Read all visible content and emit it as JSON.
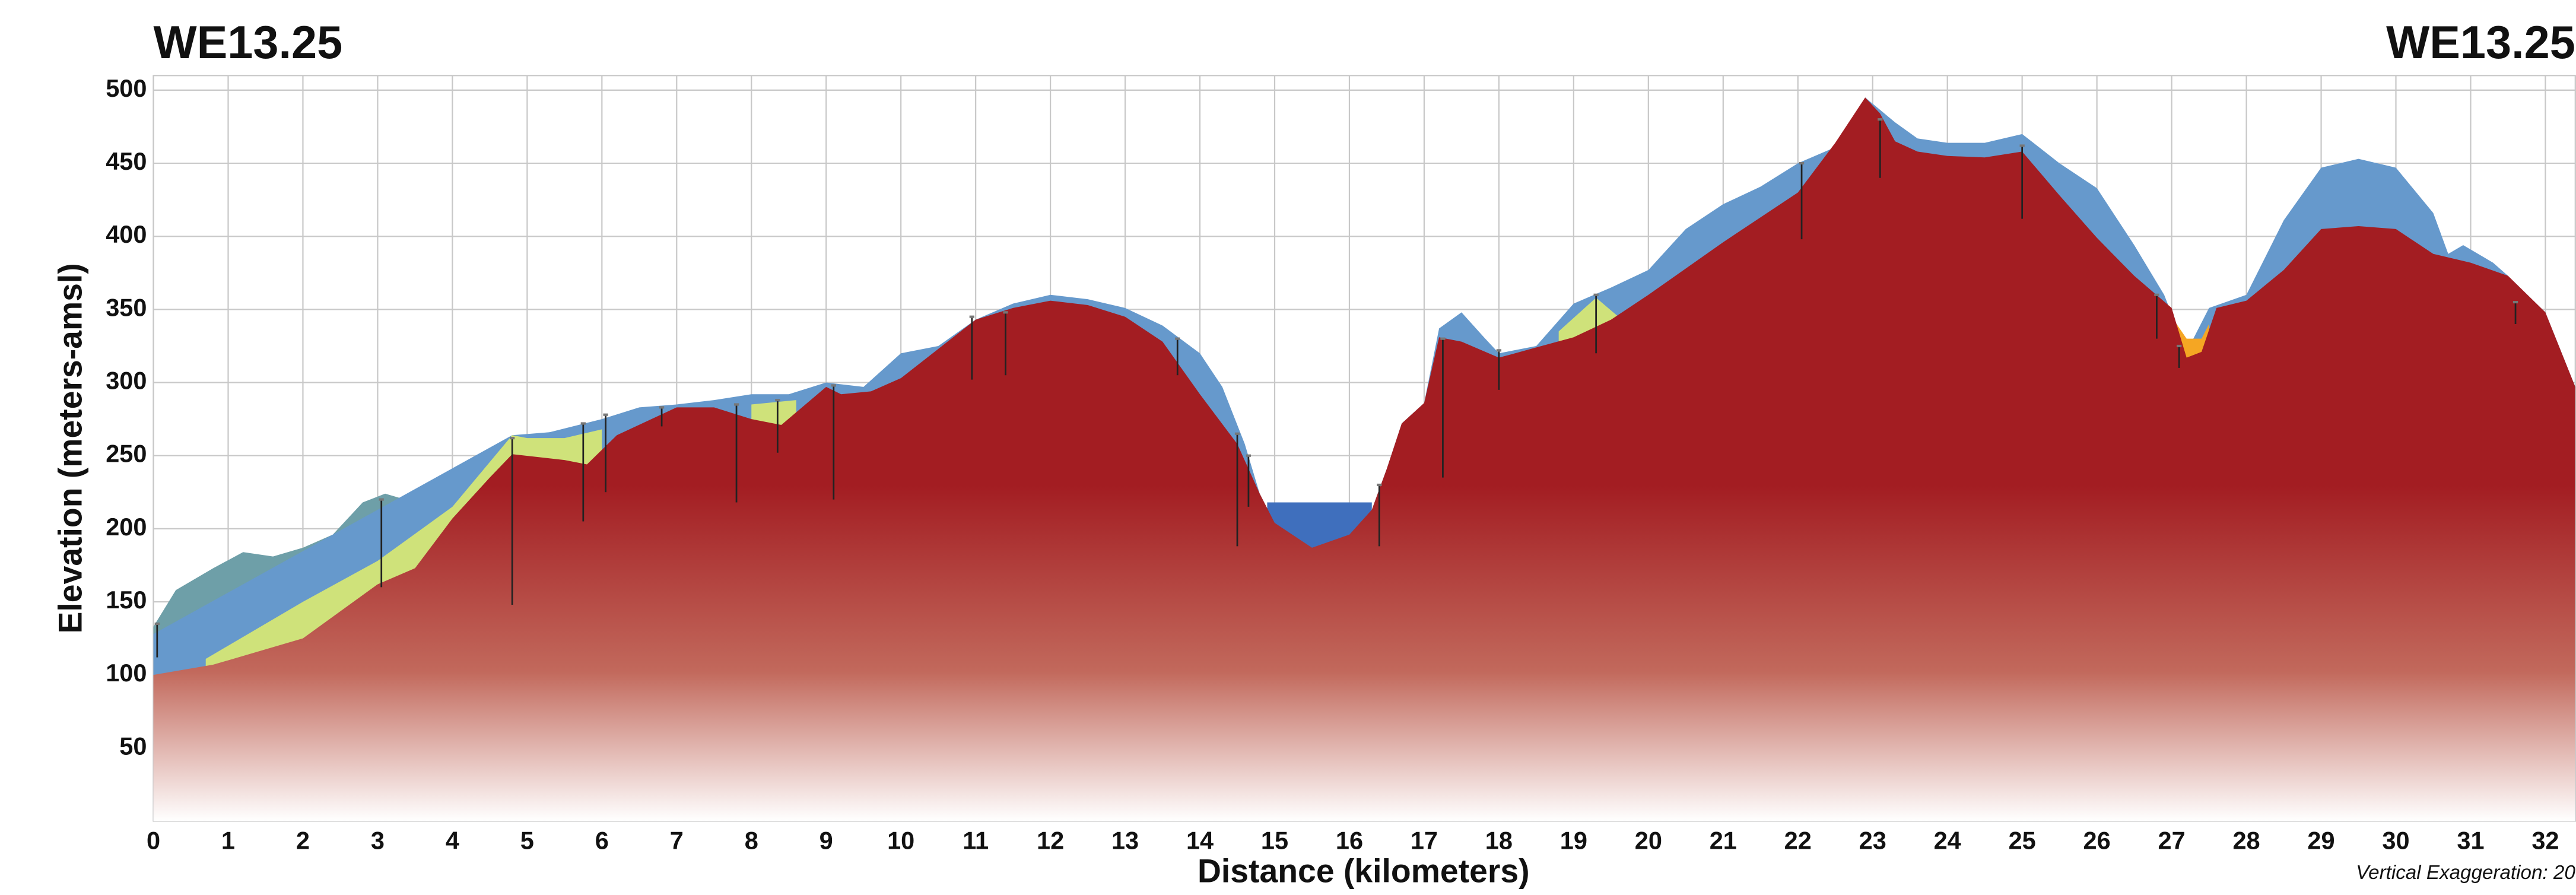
{
  "chart_data": {
    "type": "cross-section",
    "title_left": "WE13.25",
    "title_right": "WE13.25",
    "xlabel": "Distance (kilometers)",
    "ylabel": "Elevation (meters-amsl)",
    "annotation": "Vertical Exaggeration: 20",
    "xlim": [
      0,
      32.4
    ],
    "ylim": [
      0,
      510
    ],
    "xticks": [
      0,
      1,
      2,
      3,
      4,
      5,
      6,
      7,
      8,
      9,
      10,
      11,
      12,
      13,
      14,
      15,
      16,
      17,
      18,
      19,
      20,
      21,
      22,
      23,
      24,
      25,
      26,
      27,
      28,
      29,
      30,
      31,
      32
    ],
    "yticks": [
      50,
      100,
      150,
      200,
      250,
      300,
      350,
      400,
      450,
      500
    ],
    "grid": true,
    "series": [
      {
        "color": "#6e9fa8",
        "x": [
          0,
          0.3,
          0.8,
          1.2,
          1.6,
          2,
          2.4,
          2.8,
          3.1,
          3.5,
          3.8,
          4.2,
          4.6,
          5,
          5.3
        ],
        "values": [
          133,
          158,
          173,
          184,
          181,
          187,
          196,
          218,
          224,
          218,
          235,
          244,
          256,
          264,
          266
        ]
      },
      {
        "color": "#6699cc",
        "x": [
          0,
          2.4,
          4.8,
          5.3,
          6,
          6.5,
          7,
          7.5,
          8,
          8.5,
          9,
          9.5,
          10,
          10.5,
          11,
          11.5,
          12,
          12.5,
          13,
          13.5,
          14,
          14.3,
          14.6,
          14.8,
          15,
          15.5,
          16,
          16.3,
          16.5,
          16.7,
          17,
          17.2,
          17.5,
          17.8,
          18,
          18.5,
          19,
          19.5,
          20,
          20.5,
          21,
          21.5,
          22,
          22.5,
          22.9,
          23.3,
          23.6,
          24,
          24.5,
          25,
          25.5,
          26,
          26.5,
          26.9,
          27.2,
          27.5,
          28,
          28.5,
          29,
          29.5,
          30,
          30.5,
          30.7,
          30.9,
          31.3,
          31.5,
          32,
          32.4
        ],
        "values": [
          128,
          196,
          264,
          266,
          275,
          283,
          285,
          288,
          292,
          292,
          300,
          297,
          320,
          325,
          343,
          354,
          360,
          357,
          351,
          339,
          320,
          297,
          258,
          224,
          204,
          187,
          196,
          213,
          241,
          272,
          286,
          337,
          348,
          331,
          320,
          325,
          354,
          365,
          377,
          405,
          422,
          434,
          450,
          461,
          495,
          478,
          467,
          464,
          464,
          470,
          450,
          433,
          394,
          360,
          321,
          351,
          360,
          411,
          447,
          453,
          447,
          416,
          388,
          394,
          382,
          373,
          348,
          297
        ]
      },
      {
        "color": "#3f6fbd",
        "x": [
          14.9,
          16.3
        ],
        "values": [
          218,
          218
        ]
      },
      {
        "color": "#cfe27a",
        "x": [
          0.7,
          2,
          3,
          4,
          4.8,
          5.0,
          5.5,
          6.0,
          6.1,
          8.0,
          8.6,
          8.7,
          18.8,
          19.3,
          19.6
        ],
        "values": [
          111,
          150,
          178,
          215,
          264,
          262,
          262,
          268,
          null,
          285,
          288,
          null,
          335,
          358,
          345
        ]
      },
      {
        "color": "#f5a623",
        "x": [
          26.8,
          27.0,
          27.2,
          27.4,
          27.5
        ],
        "values": [
          355,
          345,
          330,
          330,
          340
        ]
      },
      {
        "color": "#a31d22",
        "x": [
          0,
          0.8,
          2,
          3,
          3.5,
          4,
          4.5,
          4.8,
          5.5,
          5.8,
          6.2,
          7,
          7.5,
          8,
          8.4,
          9,
          9.2,
          9.6,
          10,
          11,
          11.5,
          12,
          12.5,
          13,
          13.5,
          14,
          14.5,
          14.8,
          15,
          15.5,
          16,
          16.3,
          16.5,
          16.7,
          17,
          17.2,
          17.5,
          18,
          18.5,
          19,
          19.5,
          20,
          21,
          22,
          22.5,
          22.9,
          23.1,
          23.3,
          23.6,
          24,
          24.5,
          25,
          25.5,
          26,
          26.5,
          27,
          27.2,
          27.4,
          27.6,
          28,
          28.5,
          29,
          29.5,
          30,
          30.5,
          31,
          31.5,
          32,
          32.4
        ],
        "values": [
          100,
          107,
          125,
          162,
          173,
          207,
          235,
          251,
          247,
          244,
          264,
          283,
          283,
          275,
          271,
          297,
          292,
          294,
          303,
          343,
          351,
          356,
          353,
          345,
          328,
          292,
          258,
          224,
          204,
          187,
          196,
          213,
          241,
          272,
          286,
          331,
          328,
          317,
          324,
          331,
          343,
          360,
          396,
          430,
          464,
          495,
          484,
          465,
          458,
          455,
          454,
          458,
          428,
          399,
          373,
          351,
          317,
          321,
          351,
          356,
          377,
          405,
          407,
          405,
          388,
          382,
          373,
          348,
          297
        ]
      }
    ],
    "boreholes": {
      "color": "#222222",
      "x": [
        0.05,
        3.05,
        4.8,
        5.75,
        6.05,
        6.8,
        7.8,
        8.35,
        9.1,
        10.95,
        11.4,
        13.7,
        14.5,
        14.65,
        16.4,
        17.25,
        18.0,
        19.3,
        22.05,
        23.1,
        25.0,
        26.8,
        27.1,
        31.6
      ],
      "top": [
        135,
        220,
        262,
        272,
        278,
        283,
        285,
        288,
        298,
        345,
        348,
        330,
        265,
        250,
        230,
        330,
        322,
        360,
        450,
        480,
        462,
        360,
        325,
        355
      ],
      "bottom": [
        112,
        160,
        148,
        205,
        225,
        270,
        218,
        252,
        220,
        302,
        305,
        305,
        188,
        215,
        188,
        235,
        295,
        320,
        398,
        440,
        412,
        330,
        310,
        340
      ]
    }
  }
}
